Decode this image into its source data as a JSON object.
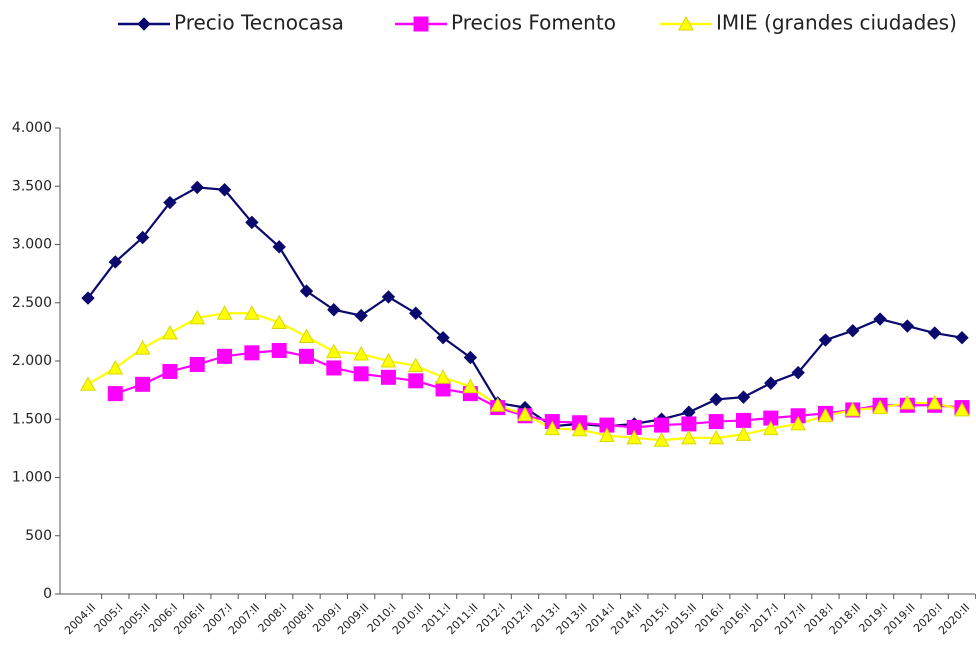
{
  "chart_data": {
    "type": "line",
    "categories": [
      "2004:II",
      "2005:I",
      "2005:II",
      "2006:I",
      "2006:II",
      "2007:I",
      "2007:II",
      "2008:I",
      "2008:II",
      "2009:I",
      "2009:II",
      "2010:I",
      "2010:II",
      "2011:I",
      "2011:II",
      "2012:I",
      "2012:II",
      "2013:I",
      "2013:II",
      "2014:I",
      "2014:II",
      "2015:I",
      "2015:II",
      "2016:I",
      "2016:II",
      "2017:I",
      "2017:II",
      "2018:I",
      "2018:II",
      "2019:I",
      "2019:II",
      "2020:I",
      "2020:II"
    ],
    "series": [
      {
        "name": "Precio Tecnocasa",
        "color": "#0a0a6e",
        "marker": "diamond",
        "values": [
          2540,
          2850,
          3060,
          3360,
          3490,
          3470,
          3190,
          2980,
          2600,
          2440,
          2390,
          2550,
          2410,
          2200,
          2030,
          1640,
          1600,
          1440,
          1460,
          1440,
          1460,
          1500,
          1560,
          1670,
          1690,
          1810,
          1900,
          2180,
          2260,
          2360,
          2300,
          2240,
          2200
        ]
      },
      {
        "name": "Precios Fomento",
        "color": "#ff00ff",
        "marker": "square",
        "values": [
          null,
          1720,
          1800,
          1910,
          1970,
          2040,
          2070,
          2090,
          2040,
          1940,
          1890,
          1860,
          1830,
          1760,
          1720,
          1600,
          1530,
          1480,
          1470,
          1450,
          1430,
          1450,
          1460,
          1480,
          1490,
          1510,
          1530,
          1550,
          1580,
          1620,
          1620,
          1620,
          1600
        ]
      },
      {
        "name": "IMIE (grandes ciudades)",
        "color": "#ffff00",
        "marker": "triangle",
        "values": [
          1800,
          1940,
          2110,
          2240,
          2370,
          2410,
          2410,
          2330,
          2210,
          2080,
          2060,
          2000,
          1960,
          1860,
          1780,
          1620,
          1540,
          1420,
          1410,
          1360,
          1340,
          1320,
          1340,
          1340,
          1370,
          1420,
          1460,
          1530,
          1580,
          1600,
          1640,
          1640,
          1580
        ]
      }
    ],
    "ylim": [
      0,
      4000
    ],
    "yticks": [
      0,
      500,
      {
        "value": 1000,
        "label": "1.000"
      },
      {
        "value": 1500,
        "label": "1.500"
      },
      {
        "value": 2000,
        "label": "2.000"
      },
      {
        "value": 2500,
        "label": "2.500"
      },
      {
        "value": 3000,
        "label": "3.000"
      },
      {
        "value": 3500,
        "label": "3.500"
      },
      {
        "value": 4000,
        "label": "4.000"
      }
    ],
    "legend": "top"
  }
}
